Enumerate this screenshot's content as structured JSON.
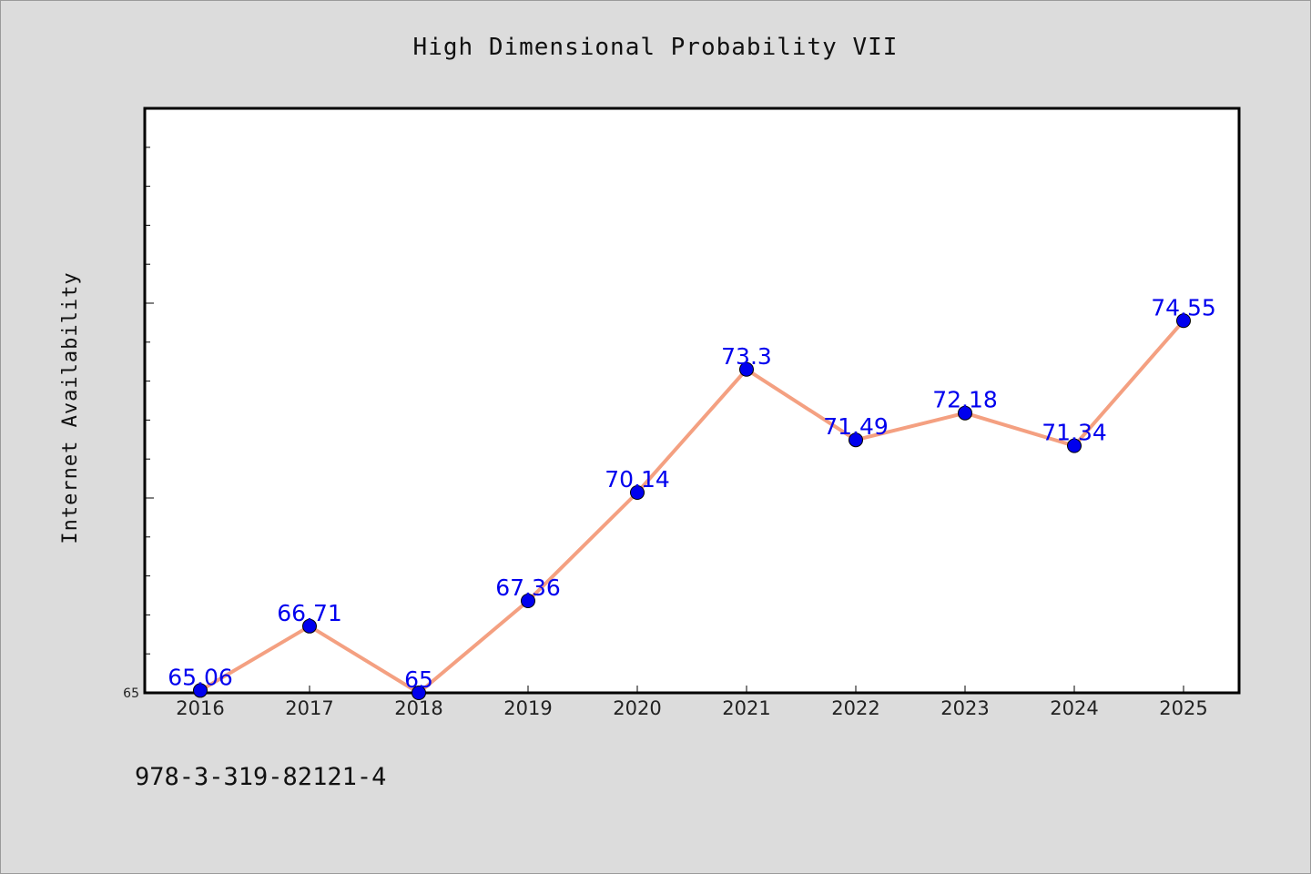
{
  "chart_data": {
    "type": "line",
    "title": "High Dimensional Probability VII",
    "xlabel": "",
    "ylabel": "Internet Availability",
    "categories": [
      "2016",
      "2017",
      "2018",
      "2019",
      "2020",
      "2021",
      "2022",
      "2023",
      "2024",
      "2025"
    ],
    "series": [
      {
        "values": [
          65.06,
          66.71,
          65,
          67.36,
          70.14,
          73.3,
          71.49,
          72.18,
          71.34,
          74.55
        ],
        "labels": [
          "65.06",
          "66.71",
          "65",
          "67.36",
          "70.14",
          "73.3",
          "71.49",
          "72.18",
          "71.34",
          "74.55"
        ]
      }
    ],
    "ylim": [
      65,
      80
    ],
    "ytick_labels": [
      {
        "value": 65,
        "label": "65"
      }
    ],
    "y_major_step": 5,
    "y_minor_step": 1,
    "grid": false,
    "legend": "none",
    "colors": {
      "line": "#f4a081",
      "marker": "#0000ee",
      "data_label": "#0000ee",
      "plot_background": "#ffffff",
      "page_background": "#dcdcdc"
    }
  },
  "footer": {
    "isbn": "978-3-319-82121-4"
  }
}
